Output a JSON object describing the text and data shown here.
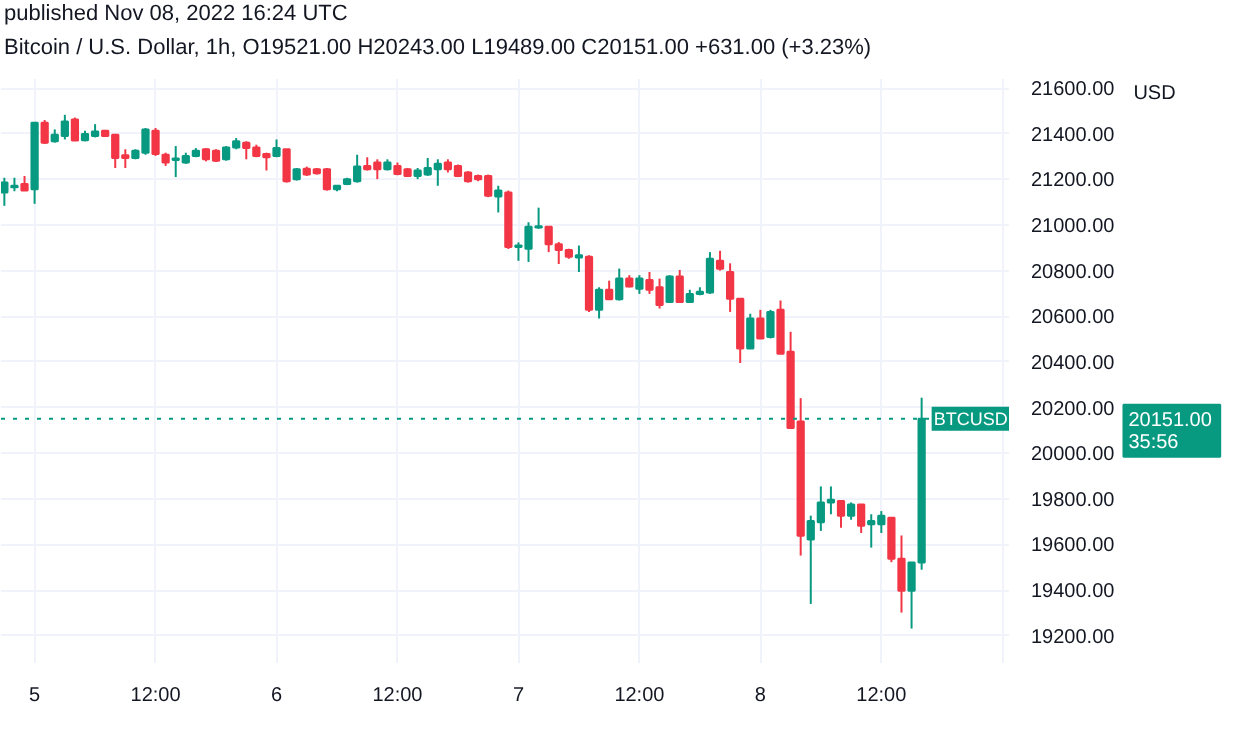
{
  "chart_data": {
    "type": "candlestick",
    "title": "Bitcoin / U.S. Dollar, 1h, O19521.00 H20243.00 L19489.00 C20151.00 +631.00 (+3.23%)",
    "subtitle": "published Nov 08, 2022 16:24 UTC",
    "ylabel": "USD",
    "x": [
      "2022-11-04T21:00",
      "2022-11-04T22:00",
      "2022-11-04T23:00",
      "2022-11-05T00:00",
      "2022-11-05T01:00",
      "2022-11-05T02:00",
      "2022-11-05T03:00",
      "2022-11-05T04:00",
      "2022-11-05T05:00",
      "2022-11-05T06:00",
      "2022-11-05T07:00",
      "2022-11-05T08:00",
      "2022-11-05T09:00",
      "2022-11-05T10:00",
      "2022-11-05T11:00",
      "2022-11-05T12:00",
      "2022-11-05T13:00",
      "2022-11-05T14:00",
      "2022-11-05T15:00",
      "2022-11-05T16:00",
      "2022-11-05T17:00",
      "2022-11-05T18:00",
      "2022-11-05T19:00",
      "2022-11-05T20:00",
      "2022-11-05T21:00",
      "2022-11-05T22:00",
      "2022-11-05T23:00",
      "2022-11-06T00:00",
      "2022-11-06T01:00",
      "2022-11-06T02:00",
      "2022-11-06T03:00",
      "2022-11-06T04:00",
      "2022-11-06T05:00",
      "2022-11-06T06:00",
      "2022-11-06T07:00",
      "2022-11-06T08:00",
      "2022-11-06T09:00",
      "2022-11-06T10:00",
      "2022-11-06T11:00",
      "2022-11-06T12:00",
      "2022-11-06T13:00",
      "2022-11-06T14:00",
      "2022-11-06T15:00",
      "2022-11-06T16:00",
      "2022-11-06T17:00",
      "2022-11-06T18:00",
      "2022-11-06T19:00",
      "2022-11-06T20:00",
      "2022-11-06T21:00",
      "2022-11-06T22:00",
      "2022-11-06T23:00",
      "2022-11-07T00:00",
      "2022-11-07T01:00",
      "2022-11-07T02:00",
      "2022-11-07T03:00",
      "2022-11-07T04:00",
      "2022-11-07T05:00",
      "2022-11-07T06:00",
      "2022-11-07T07:00",
      "2022-11-07T08:00",
      "2022-11-07T09:00",
      "2022-11-07T10:00",
      "2022-11-07T11:00",
      "2022-11-07T12:00",
      "2022-11-07T13:00",
      "2022-11-07T14:00",
      "2022-11-07T15:00",
      "2022-11-07T16:00",
      "2022-11-07T17:00",
      "2022-11-07T18:00",
      "2022-11-07T19:00",
      "2022-11-07T20:00",
      "2022-11-07T21:00",
      "2022-11-07T22:00",
      "2022-11-07T23:00",
      "2022-11-08T00:00",
      "2022-11-08T01:00",
      "2022-11-08T02:00",
      "2022-11-08T03:00",
      "2022-11-08T04:00",
      "2022-11-08T05:00",
      "2022-11-08T06:00",
      "2022-11-08T07:00",
      "2022-11-08T08:00",
      "2022-11-08T09:00",
      "2022-11-08T10:00",
      "2022-11-08T11:00",
      "2022-11-08T12:00",
      "2022-11-08T13:00",
      "2022-11-08T14:00",
      "2022-11-08T15:00",
      "2022-11-08T16:00"
    ],
    "ohlc": [
      [
        21143,
        21207,
        21084,
        21186
      ],
      [
        21166,
        21207,
        21148,
        21172
      ],
      [
        21180,
        21215,
        21151,
        21151
      ],
      [
        21157,
        21448,
        21093,
        21448
      ],
      [
        21448,
        21460,
        21355,
        21361
      ],
      [
        21367,
        21419,
        21361,
        21396
      ],
      [
        21390,
        21483,
        21375,
        21454
      ],
      [
        21463,
        21471,
        21370,
        21370
      ],
      [
        21372,
        21413,
        21367,
        21399
      ],
      [
        21390,
        21442,
        21384,
        21410
      ],
      [
        21413,
        21416,
        21387,
        21390
      ],
      [
        21396,
        21396,
        21250,
        21294
      ],
      [
        21306,
        21332,
        21250,
        21294
      ],
      [
        21294,
        21332,
        21288,
        21326
      ],
      [
        21317,
        21425,
        21308,
        21419
      ],
      [
        21413,
        21425,
        21303,
        21311
      ],
      [
        21308,
        21317,
        21259,
        21274
      ],
      [
        21285,
        21346,
        21210,
        21291
      ],
      [
        21274,
        21317,
        21268,
        21303
      ],
      [
        21303,
        21337,
        21297,
        21326
      ],
      [
        21332,
        21337,
        21279,
        21288
      ],
      [
        21326,
        21332,
        21276,
        21282
      ],
      [
        21288,
        21346,
        21282,
        21340
      ],
      [
        21340,
        21381,
        21332,
        21367
      ],
      [
        21361,
        21367,
        21288,
        21337
      ],
      [
        21340,
        21352,
        21297,
        21303
      ],
      [
        21311,
        21317,
        21239,
        21297
      ],
      [
        21303,
        21375,
        21297,
        21337
      ],
      [
        21332,
        21332,
        21186,
        21192
      ],
      [
        21201,
        21250,
        21195,
        21244
      ],
      [
        21247,
        21256,
        21215,
        21221
      ],
      [
        21244,
        21250,
        21221,
        21227
      ],
      [
        21244,
        21250,
        21151,
        21157
      ],
      [
        21157,
        21175,
        21148,
        21172
      ],
      [
        21180,
        21207,
        21175,
        21201
      ],
      [
        21192,
        21308,
        21186,
        21256
      ],
      [
        21259,
        21297,
        21239,
        21244
      ],
      [
        21274,
        21288,
        21201,
        21244
      ],
      [
        21244,
        21288,
        21239,
        21274
      ],
      [
        21259,
        21274,
        21218,
        21224
      ],
      [
        21244,
        21250,
        21210,
        21215
      ],
      [
        21215,
        21250,
        21201,
        21239
      ],
      [
        21221,
        21294,
        21215,
        21250
      ],
      [
        21244,
        21288,
        21172,
        21268
      ],
      [
        21274,
        21288,
        21230,
        21244
      ],
      [
        21259,
        21265,
        21210,
        21215
      ],
      [
        21230,
        21236,
        21186,
        21192
      ],
      [
        21215,
        21221,
        21192,
        21201
      ],
      [
        21215,
        21221,
        21122,
        21128
      ],
      [
        21125,
        21172,
        21055,
        21151
      ],
      [
        21143,
        21151,
        20895,
        20904
      ],
      [
        20904,
        20924,
        20843,
        20910
      ],
      [
        20896,
        21012,
        20838,
        20992
      ],
      [
        20989,
        21076,
        20983,
        20995
      ],
      [
        20992,
        20992,
        20881,
        20916
      ],
      [
        20916,
        20925,
        20829,
        20890
      ],
      [
        20890,
        20896,
        20852,
        20861
      ],
      [
        20858,
        20910,
        20794,
        20867
      ],
      [
        20861,
        20867,
        20619,
        20628
      ],
      [
        20628,
        20727,
        20590,
        20716
      ],
      [
        20716,
        20756,
        20675,
        20675
      ],
      [
        20675,
        20809,
        20669,
        20765
      ],
      [
        20765,
        20780,
        20727,
        20730
      ],
      [
        20721,
        20780,
        20698,
        20765
      ],
      [
        20759,
        20794,
        20698,
        20716
      ],
      [
        20727,
        20765,
        20634,
        20649
      ],
      [
        20663,
        20780,
        20663,
        20774
      ],
      [
        20774,
        20803,
        20663,
        20663
      ],
      [
        20663,
        20716,
        20663,
        20698
      ],
      [
        20698,
        20727,
        20692,
        20707
      ],
      [
        20704,
        20881,
        20698,
        20852
      ],
      [
        20843,
        20887,
        20800,
        20808
      ],
      [
        20794,
        20832,
        20619,
        20677
      ],
      [
        20677,
        20677,
        20395,
        20459
      ],
      [
        20459,
        20611,
        20459,
        20590
      ],
      [
        20590,
        20628,
        20503,
        20503
      ],
      [
        20509,
        20628,
        20503,
        20619
      ],
      [
        20628,
        20669,
        20436,
        20436
      ],
      [
        20444,
        20532,
        20110,
        20110
      ],
      [
        20139,
        20241,
        19551,
        19638
      ],
      [
        19621,
        19726,
        19339,
        19702
      ],
      [
        19697,
        19854,
        19659,
        19784
      ],
      [
        19784,
        19854,
        19732,
        19796
      ],
      [
        19790,
        19790,
        19673,
        19726
      ],
      [
        19726,
        19784,
        19708,
        19775
      ],
      [
        19775,
        19775,
        19650,
        19682
      ],
      [
        19688,
        19732,
        19586,
        19702
      ],
      [
        19688,
        19746,
        19650,
        19726
      ],
      [
        19717,
        19717,
        19522,
        19537
      ],
      [
        19537,
        19639,
        19301,
        19397
      ],
      [
        19397,
        19521,
        19231,
        19521
      ],
      [
        19521,
        20243,
        19489,
        20151
      ]
    ],
    "colors": [
      "#089981",
      "#089981",
      "#f23645",
      "#089981",
      "#f23645",
      "#089981",
      "#089981",
      "#f23645",
      "#089981",
      "#089981",
      "#f23645",
      "#f23645",
      "#f23645",
      "#089981",
      "#089981",
      "#f23645",
      "#f23645",
      "#089981",
      "#089981",
      "#089981",
      "#f23645",
      "#f23645",
      "#089981",
      "#089981",
      "#f23645",
      "#f23645",
      "#f23645",
      "#089981",
      "#f23645",
      "#089981",
      "#f23645",
      "#f23645",
      "#f23645",
      "#089981",
      "#089981",
      "#089981",
      "#f23645",
      "#f23645",
      "#089981",
      "#f23645",
      "#f23645",
      "#089981",
      "#089981",
      "#089981",
      "#f23645",
      "#f23645",
      "#f23645",
      "#f23645",
      "#f23645",
      "#089981",
      "#f23645",
      "#089981",
      "#089981",
      "#089981",
      "#f23645",
      "#f23645",
      "#f23645",
      "#089981",
      "#f23645",
      "#089981",
      "#f23645",
      "#089981",
      "#f23645",
      "#089981",
      "#f23645",
      "#f23645",
      "#089981",
      "#f23645",
      "#089981",
      "#089981",
      "#089981",
      "#f23645",
      "#f23645",
      "#f23645",
      "#089981",
      "#f23645",
      "#089981",
      "#f23645",
      "#f23645",
      "#f23645",
      "#089981",
      "#089981",
      "#089981",
      "#f23645",
      "#089981",
      "#f23645",
      "#089981",
      "#089981",
      "#f23645",
      "#f23645",
      "#089981",
      "#089981"
    ],
    "xlim": [
      "2022-11-04T20:40",
      "2022-11-09T00:40"
    ],
    "xticks": [
      {
        "value": "2022-11-05",
        "label": "5"
      },
      {
        "value": "2022-11-05T12:00",
        "label": "12:00"
      },
      {
        "value": "2022-11-06",
        "label": "6"
      },
      {
        "value": "2022-11-06T12:00",
        "label": "12:00"
      },
      {
        "value": "2022-11-07",
        "label": "7"
      },
      {
        "value": "2022-11-07T12:00",
        "label": "12:00"
      },
      {
        "value": "2022-11-08",
        "label": "8"
      },
      {
        "value": "2022-11-08T12:00",
        "label": "12:00"
      },
      {
        "value": "2022-11-09",
        "label": null
      }
    ],
    "ylim": [
      19080,
      21640
    ],
    "yticks": [
      {
        "value": 19200,
        "label": "19200.00"
      },
      {
        "value": 19400,
        "label": "19400.00"
      },
      {
        "value": 19600,
        "label": "19600.00"
      },
      {
        "value": 19800,
        "label": "19800.00"
      },
      {
        "value": 20000,
        "label": "20000.00"
      },
      {
        "value": 20200,
        "label": "20200.00"
      },
      {
        "value": 20400,
        "label": "20400.00"
      },
      {
        "value": 20600,
        "label": "20600.00"
      },
      {
        "value": 20800,
        "label": "20800.00"
      },
      {
        "value": 21000,
        "label": "21000.00"
      },
      {
        "value": 21200,
        "label": "21200.00"
      },
      {
        "value": 21400,
        "label": "21400.00"
      },
      {
        "value": 21600,
        "label": "21600.00"
      }
    ],
    "ref_lines": [
      {
        "axis": "y",
        "value": 20151,
        "label": "BTCUSD",
        "color": "#089981",
        "line_style": "dotted"
      }
    ],
    "annotations": [
      "20151.00",
      "35:56"
    ],
    "grid": true
  }
}
